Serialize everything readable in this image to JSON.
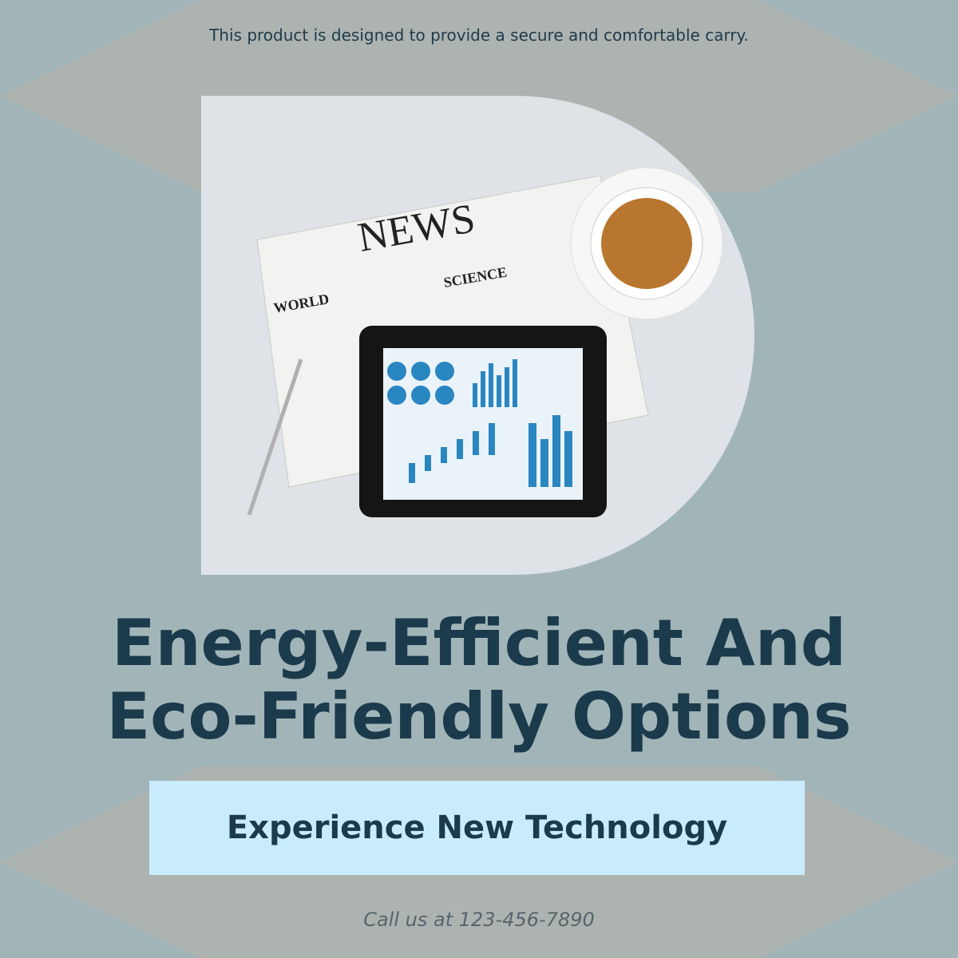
{
  "tagline": "This product is designed to provide a secure and comfortable carry.",
  "image": {
    "newspaper_title": "NEWS",
    "section_1": "WORLD",
    "section_2": "SCIENCE"
  },
  "headline": [
    "Energy-Efficient And",
    "Eco-Friendly Options"
  ],
  "button": "Experience New Technology",
  "footer": "Call us at 123-456-7890"
}
